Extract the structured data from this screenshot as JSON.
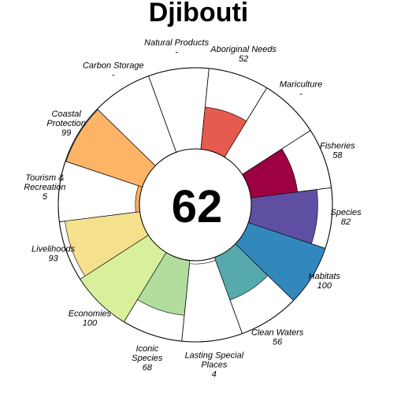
{
  "chart_data": {
    "type": "polar_bar",
    "title": "Djibouti",
    "center_score": "62",
    "max": 100,
    "goals": [
      {
        "name_lines": [
          "Natural Products"
        ],
        "score_label": "-",
        "value": null,
        "color": "#ffffff",
        "outer": "full"
      },
      {
        "name_lines": [
          "Aboriginal Needs"
        ],
        "score_label": "52",
        "value": 52,
        "color": "#e65b4f"
      },
      {
        "name_lines": [
          "Mariculture"
        ],
        "score_label": "-",
        "value": null,
        "color": "#ffffff"
      },
      {
        "name_lines": [
          "Fisheries"
        ],
        "score_label": "58",
        "value": 58,
        "color": "#9e0142"
      },
      {
        "name_lines": [
          "Species"
        ],
        "score_label": "82",
        "value": 82,
        "color": "#5e4fa2"
      },
      {
        "name_lines": [
          "Habitats"
        ],
        "score_label": "100",
        "value": 100,
        "color": "#3288bd"
      },
      {
        "name_lines": [
          "Clean Waters"
        ],
        "score_label": "56",
        "value": 56,
        "color": "#56a9ad"
      },
      {
        "name_lines": [
          "Lasting Special",
          "Places"
        ],
        "score_label": "4",
        "value": 4,
        "color": "#ffffff"
      },
      {
        "name_lines": [
          "Iconic",
          "Species"
        ],
        "score_label": "68",
        "value": 68,
        "color": "#b2dd9e"
      },
      {
        "name_lines": [
          "Economies"
        ],
        "score_label": "100",
        "value": 100,
        "color": "#d8ef9b"
      },
      {
        "name_lines": [
          "Livelihoods"
        ],
        "score_label": "93",
        "value": 93,
        "color": "#f5e08e"
      },
      {
        "name_lines": [
          "Tourism &",
          "Recreation"
        ],
        "score_label": "5",
        "value": 5,
        "color": "#fdae61"
      },
      {
        "name_lines": [
          "Coastal",
          "Protection"
        ],
        "score_label": "99",
        "value": 99,
        "color": "#fdb466"
      },
      {
        "name_lines": [
          "Carbon Storage"
        ],
        "score_label": "-",
        "value": null,
        "color": "#ffffff"
      }
    ]
  }
}
